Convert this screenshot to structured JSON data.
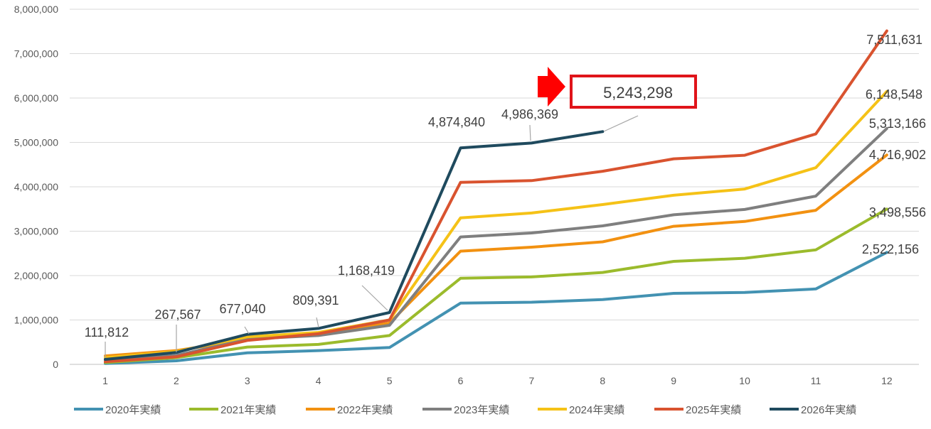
{
  "chart_data": {
    "type": "line",
    "x": [
      1,
      2,
      3,
      4,
      5,
      6,
      7,
      8,
      9,
      10,
      11,
      12
    ],
    "ylim": [
      0,
      8000000
    ],
    "yticks": [
      "0",
      "1,000,000",
      "2,000,000",
      "3,000,000",
      "4,000,000",
      "5,000,000",
      "6,000,000",
      "7,000,000",
      "8,000,000"
    ],
    "grid": "horizontal",
    "legend_position": "bottom",
    "series": [
      {
        "name": "2020年実績",
        "color": "#4392B2",
        "values": [
          20000,
          80000,
          260000,
          310000,
          380000,
          1380000,
          1400000,
          1460000,
          1600000,
          1620000,
          1700000,
          2522156
        ]
      },
      {
        "name": "2021年実績",
        "color": "#9BBB2C",
        "values": [
          40000,
          150000,
          390000,
          450000,
          650000,
          1940000,
          1970000,
          2070000,
          2320000,
          2390000,
          2580000,
          3498556
        ]
      },
      {
        "name": "2022年実績",
        "color": "#F29111",
        "values": [
          190000,
          310000,
          560000,
          680000,
          930000,
          2550000,
          2640000,
          2760000,
          3110000,
          3220000,
          3470000,
          4716902
        ]
      },
      {
        "name": "2023年実績",
        "color": "#7F7F7F",
        "values": [
          100000,
          200000,
          570000,
          650000,
          880000,
          2870000,
          2960000,
          3120000,
          3370000,
          3490000,
          3790000,
          5313166
        ]
      },
      {
        "name": "2024年実績",
        "color": "#F5C217",
        "values": [
          150000,
          290000,
          620000,
          720000,
          1000000,
          3300000,
          3410000,
          3600000,
          3810000,
          3950000,
          4430000,
          6148548
        ]
      },
      {
        "name": "2025年実績",
        "color": "#D9532F",
        "values": [
          60000,
          170000,
          540000,
          690000,
          1000000,
          4100000,
          4140000,
          4350000,
          4630000,
          4710000,
          5190000,
          7511631
        ]
      },
      {
        "name": "2026年実績",
        "color": "#1F4A5E",
        "values": [
          111812,
          267567,
          677040,
          809391,
          1168419,
          4874840,
          4986369,
          5243298,
          null,
          null,
          null,
          null
        ]
      }
    ],
    "data_labels": [
      {
        "text": "111,812"
      },
      {
        "text": "267,567"
      },
      {
        "text": "677,040"
      },
      {
        "text": "809,391"
      },
      {
        "text": "1,168,419"
      },
      {
        "text": "4,874,840"
      },
      {
        "text": "4,986,369"
      },
      {
        "text": "7,511,631"
      },
      {
        "text": "6,148,548"
      },
      {
        "text": "5,313,166"
      },
      {
        "text": "4,716,902"
      },
      {
        "text": "3,498,556"
      },
      {
        "text": "2,522,156"
      }
    ],
    "callout": {
      "text": "5,243,298",
      "border_color": "#E0141A",
      "arrow_color": "#FF0000"
    }
  }
}
